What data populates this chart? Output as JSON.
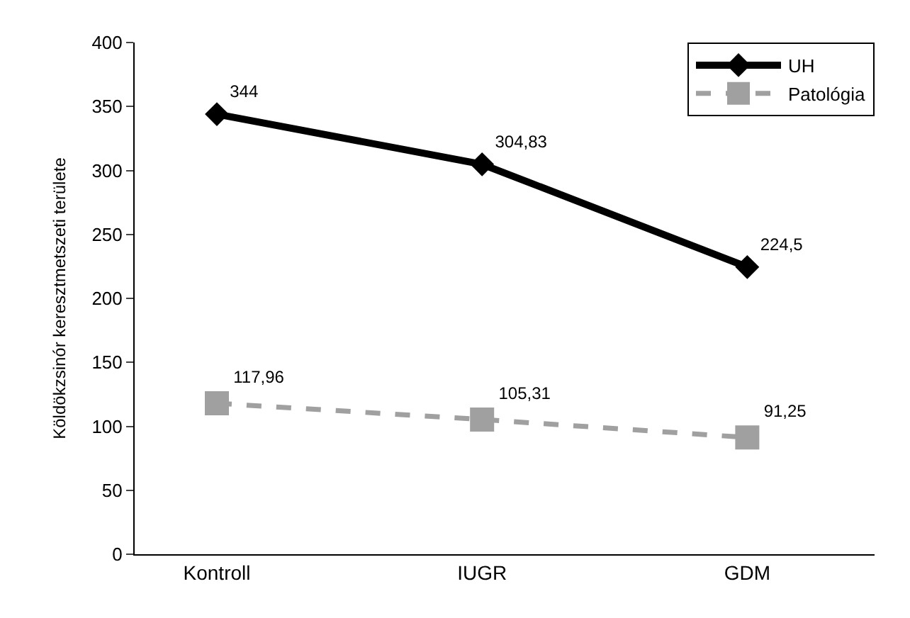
{
  "chart_data": {
    "type": "line",
    "ylabel": "Köldökzsinór keresztmetszeti területe",
    "categories": [
      "Kontroll",
      "IUGR",
      "GDM"
    ],
    "series": [
      {
        "name": "UH",
        "color": "#000000",
        "values": [
          344,
          304.83,
          224.5
        ],
        "value_labels": [
          "344",
          "304,83",
          "224,5"
        ],
        "marker": "diamond",
        "line_style": "solid"
      },
      {
        "name": "Patológia",
        "color": "#a0a0a0",
        "values": [
          117.96,
          105.31,
          91.25
        ],
        "value_labels": [
          "117,96",
          "105,31",
          "91,25"
        ],
        "marker": "square",
        "line_style": "dashed"
      }
    ],
    "ylim": [
      0,
      400
    ],
    "yticks": [
      0,
      50,
      100,
      150,
      200,
      250,
      300,
      350,
      400
    ],
    "legend": "top right"
  }
}
